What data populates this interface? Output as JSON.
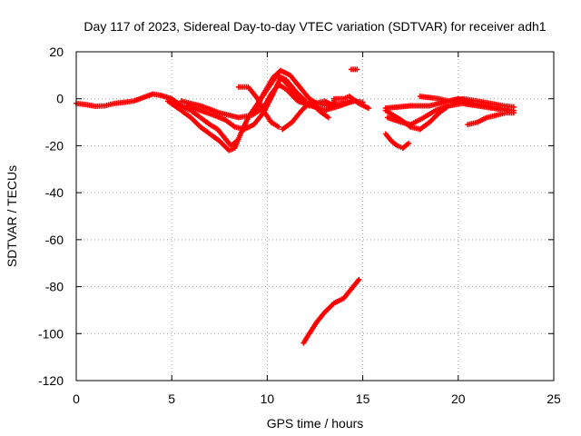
{
  "chart_data": {
    "type": "scatter",
    "title": "Day 117 of 2023, Sidereal Day-to-day VTEC variation (SDTVAR) for receiver adh1",
    "xlabel": "GPS time / hours",
    "ylabel": "SDTVAR / TECUs",
    "xlim": [
      0,
      25
    ],
    "ylim": [
      -120,
      20
    ],
    "xticks": [
      0,
      5,
      10,
      15,
      20,
      25
    ],
    "yticks": [
      -120,
      -100,
      -80,
      -60,
      -40,
      -20,
      0,
      20
    ],
    "grid": true,
    "legend": "none",
    "series_color": "#ff0000",
    "series": [
      {
        "name": "arc-a",
        "points": [
          [
            0,
            -2
          ],
          [
            0.5,
            -2.5
          ],
          [
            1.0,
            -3.2
          ],
          [
            1.5,
            -3.0
          ],
          [
            2.0,
            -2.0
          ],
          [
            2.5,
            -1.5
          ],
          [
            3.0,
            -1.0
          ],
          [
            3.5,
            0.5
          ],
          [
            4.0,
            2.0
          ],
          [
            4.4,
            1.5
          ],
          [
            5.0,
            0
          ],
          [
            5.5,
            -3
          ],
          [
            6.0,
            -5
          ],
          [
            6.5,
            -8
          ],
          [
            7.0,
            -11
          ],
          [
            7.4,
            -13
          ],
          [
            7.8,
            -17
          ],
          [
            8.1,
            -20
          ],
          [
            8.4,
            -18
          ]
        ]
      },
      {
        "name": "arc-b",
        "points": [
          [
            4.8,
            -1.0
          ],
          [
            5.5,
            -5
          ],
          [
            6.0,
            -8
          ],
          [
            6.5,
            -12
          ],
          [
            7.0,
            -15
          ],
          [
            7.5,
            -18
          ],
          [
            8.0,
            -22
          ],
          [
            8.3,
            -21
          ],
          [
            8.6,
            -15
          ],
          [
            9.0,
            -8
          ],
          [
            9.5,
            -2
          ],
          [
            10.0,
            4
          ],
          [
            10.5,
            10
          ],
          [
            11.0,
            8
          ],
          [
            11.5,
            3
          ],
          [
            12.0,
            -1
          ]
        ]
      },
      {
        "name": "arc-c",
        "points": [
          [
            5.8,
            -3
          ],
          [
            6.5,
            -5
          ],
          [
            7.2,
            -7
          ],
          [
            7.8,
            -9
          ],
          [
            8.3,
            -12
          ],
          [
            8.8,
            -13
          ],
          [
            9.3,
            -11
          ],
          [
            9.8,
            -6
          ],
          [
            10.3,
            2
          ],
          [
            10.7,
            9
          ],
          [
            11.2,
            5
          ],
          [
            11.7,
            0
          ],
          [
            12.2,
            -3
          ]
        ]
      },
      {
        "name": "arc-d",
        "points": [
          [
            5.5,
            -1
          ],
          [
            6.5,
            -3
          ],
          [
            7.5,
            -6
          ],
          [
            8.5,
            -8
          ],
          [
            9.2,
            -7
          ],
          [
            9.8,
            -4
          ],
          [
            10.2,
            2
          ],
          [
            10.6,
            6
          ],
          [
            11.0,
            4
          ],
          [
            11.6,
            -1
          ],
          [
            12.3,
            -3
          ],
          [
            13.0,
            -5
          ],
          [
            13.8,
            -3
          ],
          [
            14.5,
            -1
          ]
        ]
      },
      {
        "name": "arc-e",
        "points": [
          [
            8.5,
            5
          ],
          [
            9.0,
            5
          ],
          [
            9.5,
            0
          ],
          [
            9.8,
            -5
          ],
          [
            10.2,
            -10
          ],
          [
            10.6,
            -12
          ]
        ]
      },
      {
        "name": "arc-f",
        "points": [
          [
            9.3,
            -6
          ],
          [
            9.8,
            2
          ],
          [
            10.3,
            9
          ],
          [
            10.7,
            12
          ],
          [
            11.2,
            10
          ],
          [
            11.7,
            5
          ],
          [
            12.2,
            0
          ],
          [
            12.6,
            -2
          ],
          [
            13.2,
            -3
          ],
          [
            14.0,
            -2
          ],
          [
            14.6,
            -1
          ],
          [
            15.0,
            -1.5
          ]
        ]
      },
      {
        "name": "arc-g",
        "points": [
          [
            10.8,
            -13
          ],
          [
            11.3,
            -10
          ],
          [
            11.8,
            -5
          ],
          [
            12.3,
            -1
          ],
          [
            12.7,
            -5
          ],
          [
            13.2,
            -8
          ]
        ]
      },
      {
        "name": "arc-h",
        "points": [
          [
            12.5,
            -2
          ],
          [
            13.0,
            -1
          ],
          [
            13.5,
            -3
          ],
          [
            13.5,
            0
          ],
          [
            14.0,
            0
          ],
          [
            14.3,
            1
          ],
          [
            14.8,
            -2
          ],
          [
            15.3,
            -4
          ]
        ]
      },
      {
        "name": "arc-i",
        "points": [
          [
            14.4,
            12.5
          ],
          [
            14.7,
            12.5
          ]
        ]
      },
      {
        "name": "arc-j",
        "points": [
          [
            11.9,
            -104
          ],
          [
            12.2,
            -100
          ],
          [
            12.6,
            -95
          ],
          [
            13.0,
            -91
          ],
          [
            13.5,
            -87
          ],
          [
            14.0,
            -85
          ],
          [
            14.4,
            -81
          ],
          [
            14.8,
            -77
          ]
        ]
      },
      {
        "name": "arc-k",
        "points": [
          [
            16.2,
            -15
          ],
          [
            16.5,
            -18
          ],
          [
            16.8,
            -20
          ],
          [
            17.1,
            -21
          ],
          [
            17.4,
            -19
          ]
        ]
      },
      {
        "name": "arc-l",
        "points": [
          [
            16.2,
            -5
          ],
          [
            17.0,
            -9
          ],
          [
            17.5,
            -12
          ],
          [
            18.0,
            -13
          ],
          [
            18.5,
            -10
          ],
          [
            19.0,
            -6
          ],
          [
            19.5,
            -3
          ],
          [
            20.0,
            -2
          ]
        ]
      },
      {
        "name": "arc-m",
        "points": [
          [
            16.3,
            -8
          ],
          [
            17.0,
            -10
          ],
          [
            17.5,
            -11
          ],
          [
            18.2,
            -8
          ],
          [
            18.8,
            -5
          ],
          [
            19.5,
            -3
          ],
          [
            20.2,
            -2
          ],
          [
            21.0,
            -3
          ],
          [
            21.8,
            -4
          ],
          [
            22.5,
            -5
          ]
        ]
      },
      {
        "name": "arc-n",
        "points": [
          [
            16.2,
            -4
          ],
          [
            17.5,
            -3
          ],
          [
            18.5,
            -3
          ],
          [
            19.5,
            -1
          ],
          [
            20.0,
            0
          ],
          [
            20.8,
            -2
          ],
          [
            21.5,
            -3
          ],
          [
            22.2,
            -4
          ],
          [
            22.9,
            -5
          ]
        ]
      },
      {
        "name": "arc-o",
        "points": [
          [
            18.0,
            1
          ],
          [
            19.0,
            0
          ],
          [
            19.5,
            -1
          ],
          [
            20.3,
            0
          ],
          [
            21.0,
            -1
          ],
          [
            21.7,
            -2
          ],
          [
            22.4,
            -3
          ],
          [
            22.9,
            -3.5
          ]
        ]
      },
      {
        "name": "arc-p",
        "points": [
          [
            20.5,
            -11
          ],
          [
            21.0,
            -10
          ],
          [
            21.5,
            -8
          ],
          [
            22.0,
            -7
          ],
          [
            22.5,
            -6
          ],
          [
            22.9,
            -6
          ]
        ]
      }
    ]
  }
}
